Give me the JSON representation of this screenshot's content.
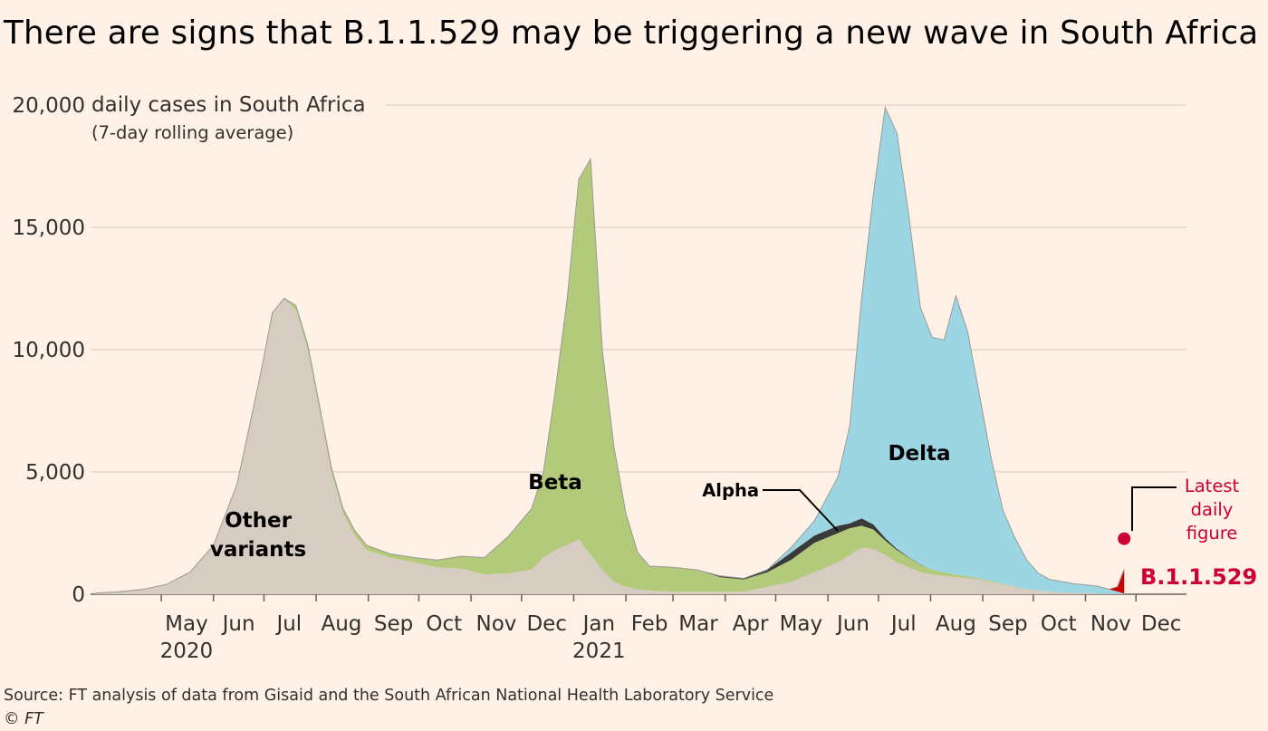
{
  "title": "There are signs that B.1.1.529 may be triggering a new wave in South Africa",
  "source": "Source: FT analysis of data from Gisaid and the South African National Health Laboratory Service",
  "credit": "© FT",
  "chart_data": {
    "type": "area",
    "stacked": true,
    "ylabel": "daily cases in South Africa",
    "ylabel_sub": "(7-day rolling average)",
    "ylim": [
      0,
      20000
    ],
    "yticks": [
      0,
      5000,
      10000,
      15000,
      20000
    ],
    "ytick_labels": [
      "0",
      "5,000",
      "10,000",
      "15,000",
      "20,000"
    ],
    "grid": true,
    "xlim": [
      "2020-03-20",
      "2021-12-31"
    ],
    "xticks": [
      {
        "label": "May",
        "year": "2020",
        "date": "2020-05-16"
      },
      {
        "label": "Jun",
        "date": "2020-06-16"
      },
      {
        "label": "Jul",
        "date": "2020-07-16"
      },
      {
        "label": "Aug",
        "date": "2020-08-16"
      },
      {
        "label": "Sep",
        "date": "2020-09-16"
      },
      {
        "label": "Oct",
        "date": "2020-10-16"
      },
      {
        "label": "Nov",
        "date": "2020-11-16"
      },
      {
        "label": "Dec",
        "date": "2020-12-16"
      },
      {
        "label": "Jan",
        "year": "2021",
        "date": "2021-01-16"
      },
      {
        "label": "Feb",
        "date": "2021-02-15"
      },
      {
        "label": "Mar",
        "date": "2021-03-16"
      },
      {
        "label": "Apr",
        "date": "2021-04-16"
      },
      {
        "label": "May",
        "date": "2021-05-16"
      },
      {
        "label": "Jun",
        "date": "2021-06-16"
      },
      {
        "label": "Jul",
        "date": "2021-07-16"
      },
      {
        "label": "Aug",
        "date": "2021-08-16"
      },
      {
        "label": "Sep",
        "date": "2021-09-16"
      },
      {
        "label": "Oct",
        "date": "2021-10-16"
      },
      {
        "label": "Nov",
        "date": "2021-11-16"
      },
      {
        "label": "Dec",
        "date": "2021-12-16"
      }
    ],
    "x": [
      "2020-03-23",
      "2020-04-06",
      "2020-04-20",
      "2020-05-04",
      "2020-05-18",
      "2020-06-01",
      "2020-06-15",
      "2020-06-29",
      "2020-07-06",
      "2020-07-13",
      "2020-07-20",
      "2020-07-27",
      "2020-08-03",
      "2020-08-10",
      "2020-08-17",
      "2020-08-24",
      "2020-08-31",
      "2020-09-14",
      "2020-09-28",
      "2020-10-12",
      "2020-10-26",
      "2020-11-09",
      "2020-11-23",
      "2020-12-07",
      "2020-12-14",
      "2020-12-21",
      "2020-12-28",
      "2021-01-04",
      "2021-01-11",
      "2021-01-18",
      "2021-01-25",
      "2021-02-01",
      "2021-02-08",
      "2021-02-15",
      "2021-03-01",
      "2021-03-15",
      "2021-03-29",
      "2021-04-12",
      "2021-04-26",
      "2021-05-10",
      "2021-05-24",
      "2021-06-07",
      "2021-06-14",
      "2021-06-21",
      "2021-06-28",
      "2021-07-05",
      "2021-07-12",
      "2021-07-19",
      "2021-07-26",
      "2021-08-02",
      "2021-08-09",
      "2021-08-16",
      "2021-08-23",
      "2021-08-30",
      "2021-09-06",
      "2021-09-13",
      "2021-09-20",
      "2021-09-27",
      "2021-10-04",
      "2021-10-11",
      "2021-10-25",
      "2021-11-08",
      "2021-11-15",
      "2021-11-20",
      "2021-11-24"
    ],
    "series": [
      {
        "name": "Other variants",
        "color": "#d6ccc2",
        "values": [
          50,
          100,
          200,
          400,
          900,
          2000,
          4500,
          9000,
          11500,
          12100,
          11600,
          10000,
          7500,
          5000,
          3300,
          2400,
          1800,
          1500,
          1300,
          1100,
          1050,
          800,
          850,
          1000,
          1500,
          1800,
          2000,
          2250,
          1600,
          1000,
          500,
          300,
          200,
          150,
          100,
          100,
          100,
          100,
          300,
          500,
          900,
          1300,
          1600,
          1900,
          1850,
          1600,
          1300,
          1100,
          900,
          800,
          750,
          700,
          650,
          600,
          500,
          400,
          300,
          200,
          150,
          100,
          50,
          30,
          20,
          10,
          5
        ]
      },
      {
        "name": "Beta",
        "color": "#b3ca7b",
        "values": [
          0,
          0,
          0,
          0,
          0,
          0,
          0,
          0,
          0,
          0,
          200,
          200,
          200,
          200,
          200,
          200,
          200,
          150,
          200,
          300,
          500,
          700,
          1500,
          2500,
          3500,
          6500,
          10000,
          14700,
          16200,
          9000,
          5500,
          3000,
          1500,
          1000,
          1000,
          900,
          600,
          500,
          600,
          900,
          1200,
          1200,
          1100,
          900,
          800,
          600,
          500,
          400,
          300,
          200,
          150,
          100,
          80,
          50,
          40,
          30,
          20,
          10,
          5,
          0,
          0,
          0,
          0,
          0,
          0
        ]
      },
      {
        "name": "Alpha",
        "color": "#3a3a3a",
        "values": [
          0,
          0,
          0,
          0,
          0,
          0,
          0,
          0,
          0,
          0,
          0,
          0,
          0,
          0,
          0,
          0,
          0,
          0,
          0,
          0,
          0,
          0,
          0,
          0,
          0,
          0,
          0,
          0,
          0,
          0,
          0,
          0,
          0,
          0,
          0,
          0,
          50,
          50,
          100,
          300,
          300,
          300,
          200,
          300,
          200,
          100,
          50,
          20,
          10,
          0,
          0,
          0,
          0,
          0,
          0,
          0,
          0,
          0,
          0,
          0,
          0,
          0,
          0,
          0,
          0
        ]
      },
      {
        "name": "Delta",
        "color": "#9dd6e3",
        "values": [
          0,
          0,
          0,
          0,
          0,
          0,
          0,
          0,
          0,
          0,
          0,
          0,
          0,
          0,
          0,
          0,
          0,
          0,
          0,
          0,
          0,
          0,
          0,
          0,
          0,
          0,
          0,
          0,
          0,
          0,
          0,
          0,
          0,
          0,
          0,
          0,
          0,
          0,
          0,
          200,
          600,
          2000,
          4000,
          9000,
          13500,
          17600,
          17000,
          14000,
          10500,
          9500,
          9500,
          11400,
          10000,
          7500,
          5000,
          3000,
          2000,
          1200,
          700,
          500,
          380,
          300,
          180,
          100,
          20
        ]
      },
      {
        "name": "B.1.1.529",
        "color": "#cc0000",
        "values": [
          0,
          0,
          0,
          0,
          0,
          0,
          0,
          0,
          0,
          0,
          0,
          0,
          0,
          0,
          0,
          0,
          0,
          0,
          0,
          0,
          0,
          0,
          0,
          0,
          0,
          0,
          0,
          0,
          0,
          0,
          0,
          0,
          0,
          0,
          0,
          0,
          0,
          0,
          0,
          0,
          0,
          0,
          0,
          0,
          0,
          0,
          0,
          0,
          0,
          0,
          0,
          0,
          0,
          0,
          0,
          0,
          0,
          0,
          0,
          0,
          0,
          0,
          5,
          200,
          1000
        ]
      }
    ],
    "latest_daily": {
      "date": "2021-11-24",
      "value": 2270
    },
    "annotations": {
      "other": [
        "Other",
        "variants"
      ],
      "beta": "Beta",
      "alpha": "Alpha",
      "delta": "Delta",
      "latest": [
        "Latest",
        "daily",
        "figure"
      ],
      "b11529": "B.1.1.529"
    },
    "colors": {
      "grid": "#e3d7cc",
      "axis": "#66605c",
      "text": "#33302e",
      "highlight": "#cc0000",
      "outline": "#999999"
    }
  }
}
